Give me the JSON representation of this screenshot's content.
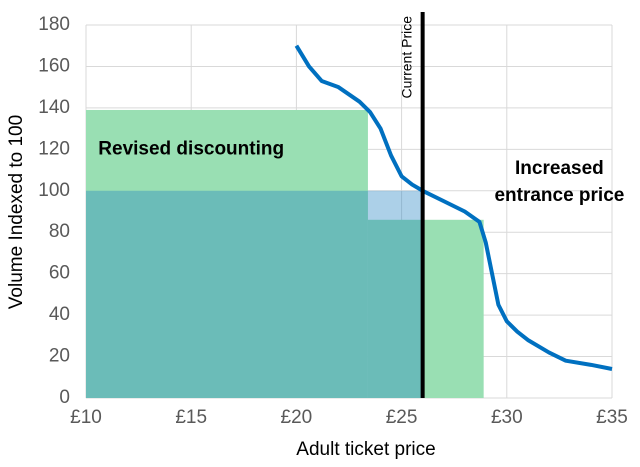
{
  "chart_data": {
    "type": "line",
    "x_label": "Adult ticket price",
    "y_label": "Volume Indexed to 100",
    "xlim": [
      10,
      35
    ],
    "ylim": [
      0,
      180
    ],
    "xticks": [
      {
        "value": 10,
        "label": "£10"
      },
      {
        "value": 15,
        "label": "£15"
      },
      {
        "value": 20,
        "label": "£20"
      },
      {
        "value": 25,
        "label": "£25"
      },
      {
        "value": 30,
        "label": "£30"
      },
      {
        "value": 35,
        "label": "£35"
      }
    ],
    "yticks": [
      0,
      20,
      40,
      60,
      80,
      100,
      120,
      140,
      160,
      180
    ],
    "grid": true,
    "series": [
      {
        "color": "#0070c0",
        "x": [
          20,
          20.6,
          21.2,
          22,
          23,
          23.5,
          24,
          24.5,
          25,
          25.5,
          26,
          27,
          28,
          28.7,
          29,
          29.3,
          29.6,
          30,
          30.5,
          31,
          32,
          32.8,
          34,
          35
        ],
        "values": [
          170,
          160,
          153,
          150,
          143,
          138,
          130,
          117,
          107,
          103,
          100,
          95,
          90,
          85,
          75,
          60,
          45,
          37,
          32,
          28,
          22,
          18,
          16,
          14
        ]
      }
    ],
    "regions": [
      {
        "x": [
          10,
          23.4
        ],
        "value": 139,
        "color": "#99dfb3"
      },
      {
        "x": [
          23.4,
          28.9
        ],
        "value": 86,
        "color": "#99dfb3"
      },
      {
        "x": [
          10,
          26
        ],
        "value": 100,
        "color": "#1f7fc0"
      }
    ],
    "current_price": {
      "x": 26,
      "label": "Current Price",
      "color": "#000000"
    },
    "annotations": [
      {
        "text": "Revised discounting",
        "x": 15,
        "y": 120
      },
      {
        "lines": [
          "Increased",
          "entrance price"
        ],
        "x": 32.5,
        "y": 104
      }
    ]
  }
}
